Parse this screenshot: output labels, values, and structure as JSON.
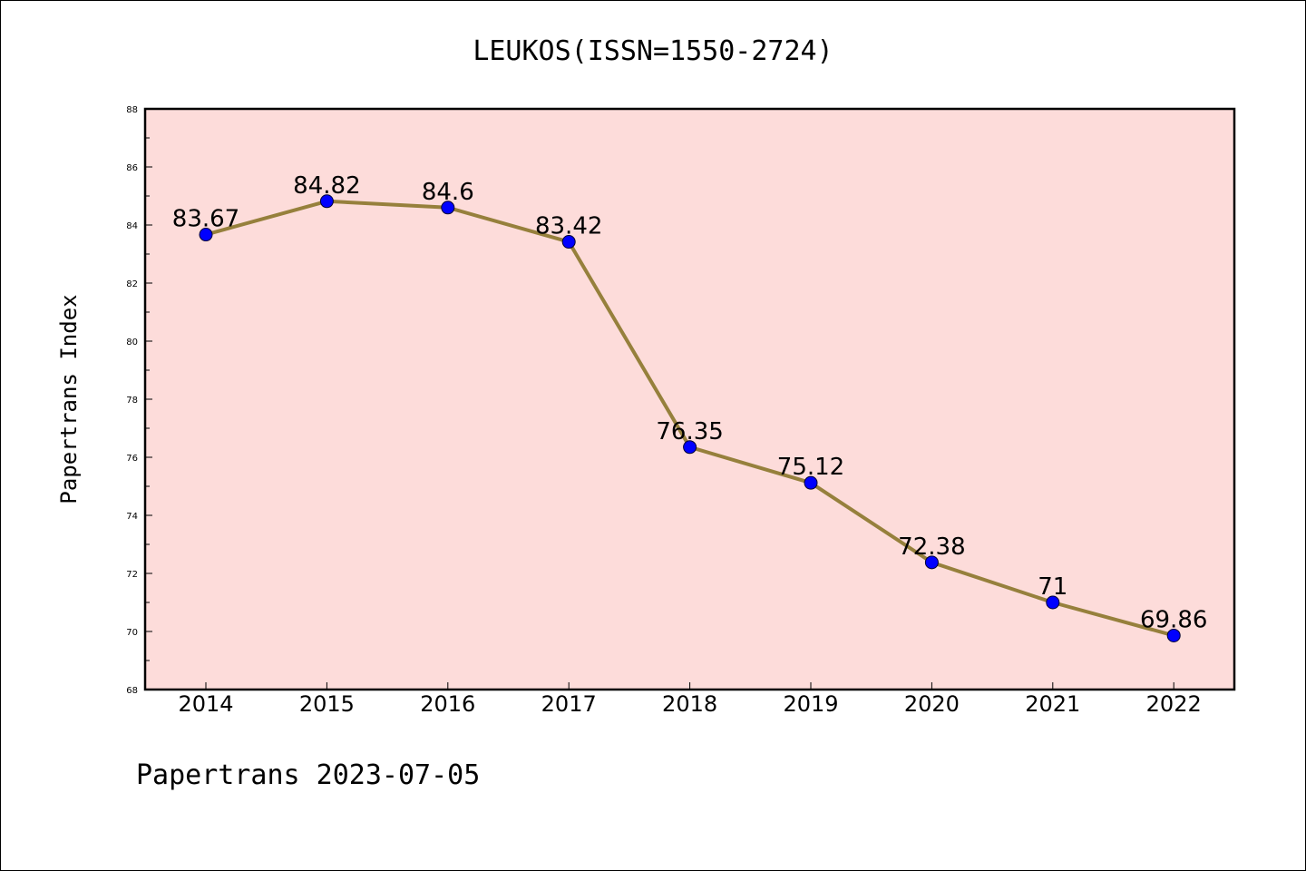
{
  "chart_data": {
    "type": "line",
    "title": "LEUKOS(ISSN=1550-2724)",
    "ylabel": "Papertrans Index",
    "xlabel": "",
    "categories": [
      "2014",
      "2015",
      "2016",
      "2017",
      "2018",
      "2019",
      "2020",
      "2021",
      "2022"
    ],
    "values": [
      83.67,
      84.82,
      84.6,
      83.42,
      76.35,
      75.12,
      72.38,
      71,
      69.86
    ],
    "data_labels": [
      "83.67",
      "84.82",
      "84.6",
      "83.42",
      "76.35",
      "75.12",
      "72.38",
      "71",
      "69.86"
    ],
    "ylim": [
      68,
      88
    ],
    "yticks": [
      "68",
      "70",
      "72",
      "74",
      "76",
      "78",
      "80",
      "82",
      "84",
      "86",
      "88"
    ],
    "grid": false,
    "legend": "none",
    "colors": {
      "plot_background": "#fddcda",
      "line": "#96803c",
      "marker": "#0000ff",
      "axes": "#000000"
    }
  },
  "footer": "Papertrans 2023-07-05"
}
